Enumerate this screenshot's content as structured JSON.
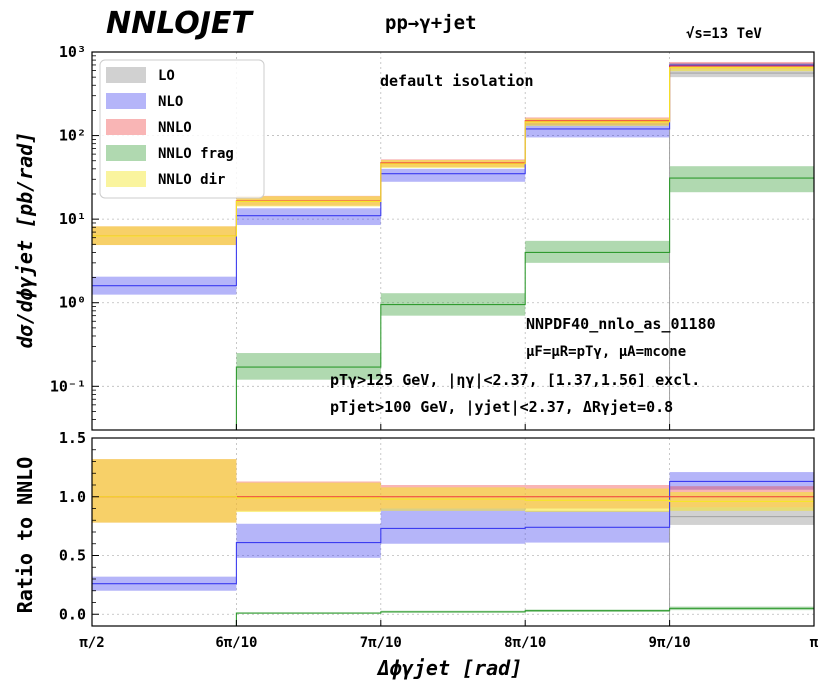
{
  "header": {
    "logo_text": "NNLOJET",
    "process": "pp→γ+jet",
    "energy": "√s=13 TeV"
  },
  "top_panel": {
    "ylabel": "dσ/dϕγjet [pb/rad]",
    "annotation_isolation": "default isolation",
    "annotation_pdf": "NNPDF40_nnlo_as_01180",
    "annotation_scales": "μF=μR=pTγ, μA=mcone",
    "annotation_cuts1": "pTγ>125 GeV, |ηγ|<2.37, [1.37,1.56] excl.",
    "annotation_cuts2": "pTjet>100 GeV, |yjet|<2.37, ΔRγjet=0.8",
    "ytick_labels": [
      "10⁻¹",
      "10⁰",
      "10¹",
      "10²",
      "10³"
    ],
    "legend": [
      "LO",
      "NLO",
      "NNLO",
      "NNLO frag",
      "NNLO dir"
    ]
  },
  "bottom_panel": {
    "ylabel": "Ratio to NNLO",
    "ytick_labels": [
      "0.0",
      "0.5",
      "1.0",
      "1.5"
    ]
  },
  "x_axis": {
    "label": "Δϕγjet [rad]",
    "tick_labels": [
      "π/2",
      "6π/10",
      "7π/10",
      "8π/10",
      "9π/10",
      "π"
    ]
  },
  "colors": {
    "LO": "#9a9a9a",
    "NLO": "#3c3cf0",
    "NNLO": "#f03c3c",
    "NNLO frag": "#2f9a2f",
    "NNLO dir": "#f5e628",
    "band_overlap": "#f7b04a"
  },
  "chart_data": [
    {
      "type": "bar",
      "title": "pp→γ+jet",
      "xlabel": "Δϕγjet [rad]",
      "ylabel": "dσ/dϕγjet [pb/rad]",
      "yscale": "log",
      "ylim": [
        0.03,
        1000
      ],
      "grid": true,
      "legend_position": "top-left",
      "bin_edges": [
        0.5,
        0.6,
        0.7,
        0.8,
        0.9,
        1.0
      ],
      "categories": [
        "π/2",
        "6π/10",
        "7π/10",
        "8π/10",
        "9π/10",
        "π"
      ],
      "series": [
        {
          "name": "LO",
          "central": [
            0,
            0,
            0,
            0,
            560
          ],
          "low": [
            0,
            0,
            0,
            0,
            500
          ],
          "high": [
            0,
            0,
            0,
            0,
            620
          ]
        },
        {
          "name": "NLO",
          "central": [
            1.6,
            11,
            35,
            120,
            700
          ],
          "low": [
            1.25,
            8.5,
            28,
            95,
            640
          ],
          "high": [
            2.05,
            13.5,
            40,
            140,
            740
          ]
        },
        {
          "name": "NNLO",
          "central": [
            6.3,
            16.5,
            47,
            150,
            680
          ],
          "low": [
            4.9,
            14.5,
            42,
            135,
            620
          ],
          "high": [
            8.2,
            19.0,
            52,
            165,
            760
          ]
        },
        {
          "name": "NNLO frag",
          "central": [
            0.001,
            0.17,
            0.95,
            4.0,
            31
          ],
          "low": [
            0.001,
            0.12,
            0.7,
            3.0,
            21
          ],
          "high": [
            0.001,
            0.25,
            1.3,
            5.5,
            43
          ]
        },
        {
          "name": "NNLO dir",
          "central": [
            6.3,
            16.3,
            46,
            146,
            650
          ],
          "low": [
            4.9,
            14.2,
            41,
            130,
            590
          ],
          "high": [
            8.2,
            18.8,
            51,
            160,
            720
          ]
        }
      ]
    },
    {
      "type": "bar",
      "xlabel": "Δϕγjet [rad]",
      "ylabel": "Ratio to NNLO",
      "ylim": [
        -0.1,
        1.5
      ],
      "grid": true,
      "bin_edges": [
        0.5,
        0.6,
        0.7,
        0.8,
        0.9,
        1.0
      ],
      "categories": [
        "π/2",
        "6π/10",
        "7π/10",
        "8π/10",
        "9π/10",
        "π"
      ],
      "series": [
        {
          "name": "LO",
          "central": [
            0,
            0,
            0,
            0,
            0.83
          ],
          "low": [
            0,
            0,
            0,
            0,
            0.76
          ],
          "high": [
            0,
            0,
            0,
            0,
            0.91
          ]
        },
        {
          "name": "NLO",
          "central": [
            0.26,
            0.61,
            0.73,
            0.74,
            1.13
          ],
          "low": [
            0.2,
            0.48,
            0.6,
            0.61,
            1.06
          ],
          "high": [
            0.32,
            0.77,
            0.9,
            0.88,
            1.21
          ]
        },
        {
          "name": "NNLO",
          "central": [
            1.0,
            1.0,
            1.0,
            1.0,
            1.0
          ],
          "low": [
            0.78,
            0.88,
            0.9,
            0.9,
            0.91
          ],
          "high": [
            1.32,
            1.13,
            1.1,
            1.1,
            1.09
          ]
        },
        {
          "name": "NNLO frag",
          "central": [
            0.0,
            0.01,
            0.02,
            0.03,
            0.05
          ],
          "low": [
            0.0,
            0.005,
            0.015,
            0.02,
            0.035
          ],
          "high": [
            0.0,
            0.015,
            0.03,
            0.04,
            0.065
          ]
        },
        {
          "name": "NNLO dir",
          "central": [
            1.0,
            0.99,
            0.98,
            0.97,
            0.96
          ],
          "low": [
            0.78,
            0.87,
            0.88,
            0.87,
            0.88
          ],
          "high": [
            1.32,
            1.12,
            1.08,
            1.07,
            1.04
          ]
        }
      ]
    }
  ]
}
